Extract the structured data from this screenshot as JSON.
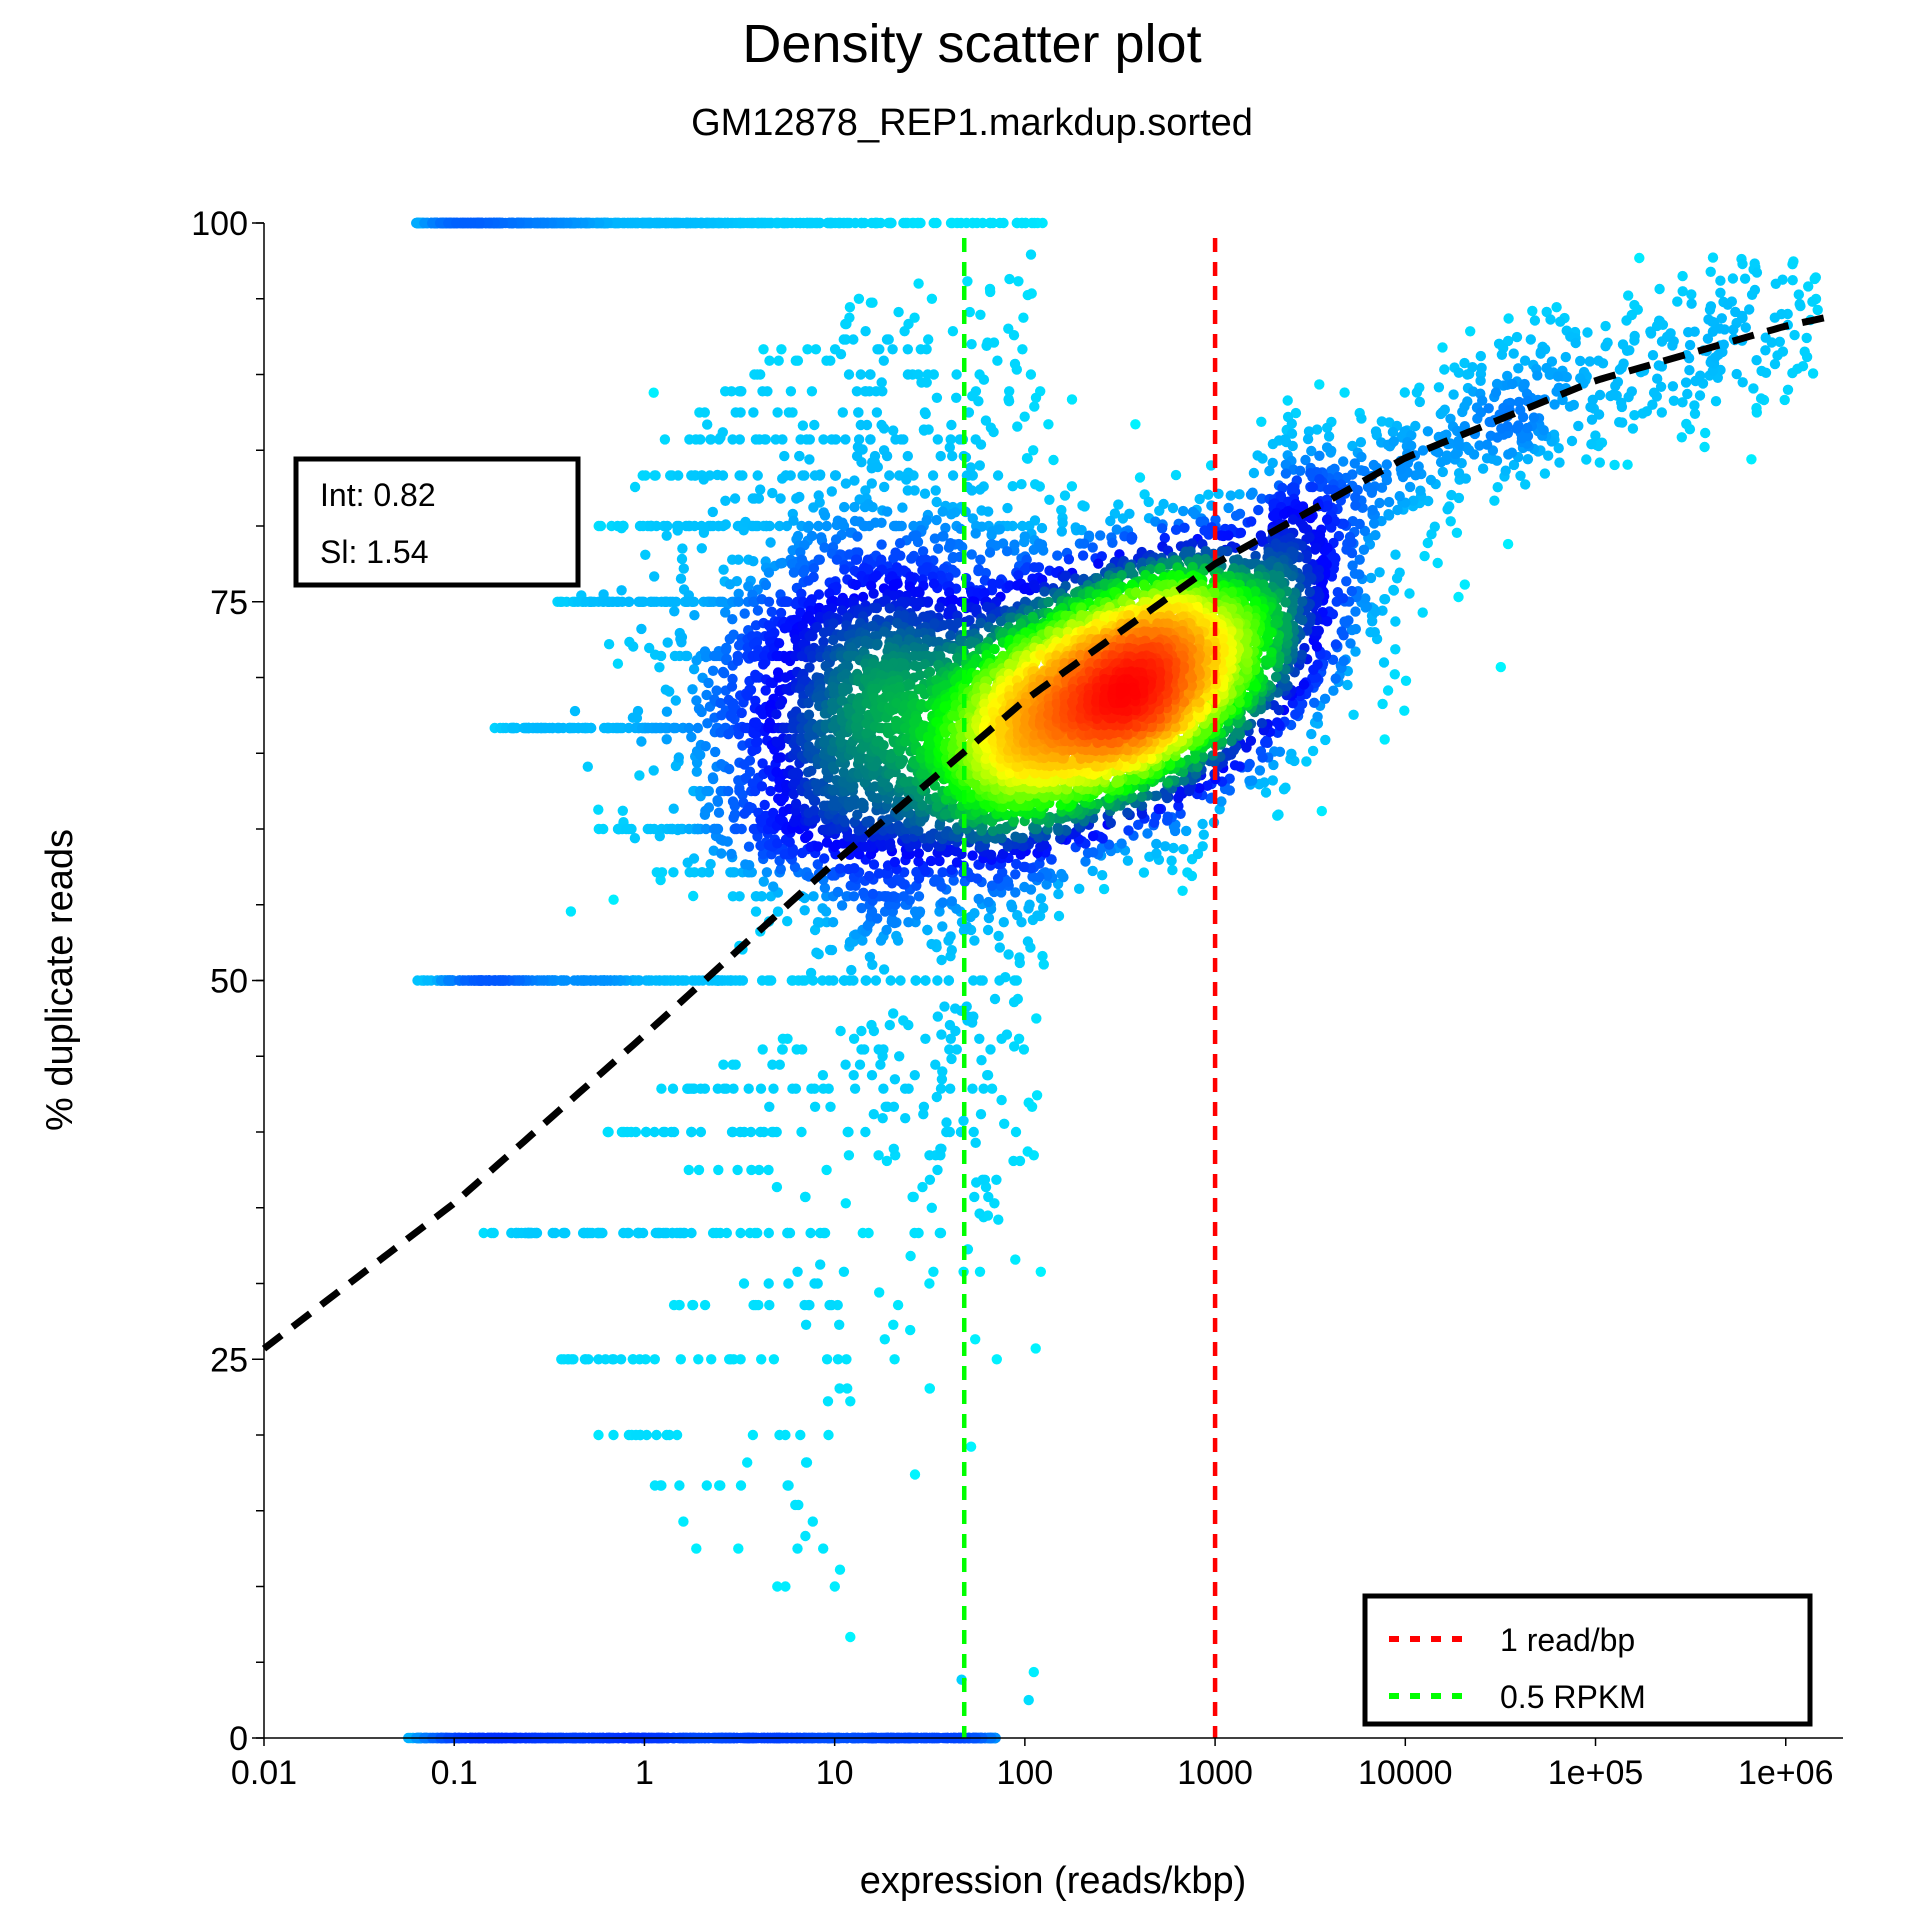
{
  "chart_data": {
    "type": "scatter",
    "title": "Density scatter plot",
    "subtitle": "GM12878_REP1.markdup.sorted",
    "xlabel": "expression (reads/kbp)",
    "ylabel": "% duplicate reads",
    "x_scale": "log",
    "xlim": [
      0.01,
      2000000
    ],
    "ylim": [
      0,
      100
    ],
    "x_ticks": [
      0.01,
      0.1,
      1,
      10,
      100,
      1000,
      10000,
      100000,
      1000000
    ],
    "x_tick_labels": [
      "0.01",
      "0.1",
      "1",
      "10",
      "100",
      "1000",
      "10000",
      "1e+05",
      "1e+06"
    ],
    "y_ticks": [
      0,
      25,
      50,
      75,
      100
    ],
    "y_tick_labels": [
      "0",
      "25",
      "50",
      "75",
      "100"
    ],
    "y_minor_tick_step": 5,
    "grid": false,
    "point_coloring": "density (cyan low, blue, green, yellow, red high)",
    "density_peak": {
      "x": 500,
      "y": 70
    },
    "fit_line": {
      "color": "#000000",
      "style": "dashed",
      "x": [
        0.01,
        0.1,
        1,
        10,
        100,
        1000,
        10000,
        100000,
        1000000,
        2000000
      ],
      "y": [
        25.7,
        35.3,
        46.4,
        57.8,
        68.5,
        77.5,
        84.5,
        89.6,
        93.2,
        94.0
      ]
    },
    "fit_stats": {
      "intercept": "Int: 0.82",
      "slope": "Sl: 1.54"
    },
    "vertical_lines": [
      {
        "name": "1 read/bp",
        "x": 1000,
        "color": "#ff0000",
        "style": "dashed"
      },
      {
        "name": "0.5 RPKM",
        "x": 48,
        "color": "#00ff00",
        "style": "dashed"
      }
    ],
    "legend": {
      "placement": "bottom-right",
      "entries": [
        "1 read/bp",
        "0.5 RPKM"
      ]
    }
  }
}
